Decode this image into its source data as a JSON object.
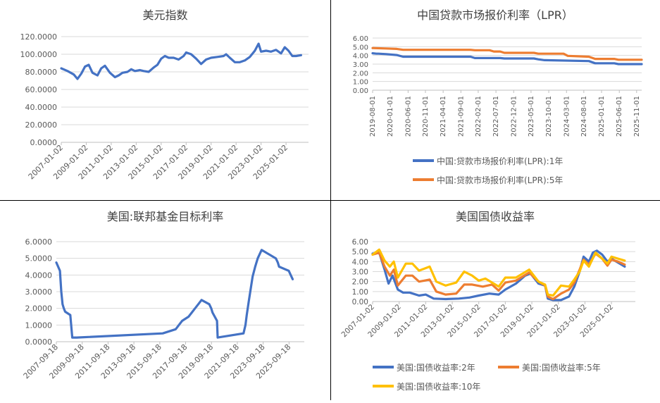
{
  "colors": {
    "blue": "#4472C4",
    "orange": "#ED7D31",
    "yellow": "#FFC000",
    "grid": "#d9d9d9",
    "axis": "#bfbfbf",
    "text": "#595959",
    "title": "#404040"
  },
  "chart_data": [
    {
      "id": "dxy",
      "type": "line",
      "title": "美元指数",
      "ylim": [
        0,
        120
      ],
      "yticks": [
        0,
        20,
        40,
        60,
        80,
        100,
        120
      ],
      "ytick_labels": [
        "0.0000",
        "20.0000",
        "40.0000",
        "60.0000",
        "80.0000",
        "100.0000",
        "120.0000"
      ],
      "xlim": [
        2007.0,
        2026.8
      ],
      "xticks": [
        2007,
        2009,
        2011,
        2013,
        2015,
        2017,
        2019,
        2021,
        2023,
        2025
      ],
      "xtick_labels": [
        "2007-01-02",
        "2009-01-02",
        "2011-01-02",
        "2013-01-02",
        "2015-01-02",
        "2017-01-02",
        "2019-01-02",
        "2021-01-02",
        "2023-01-02",
        "2025-01-02"
      ],
      "grid": "horizontal",
      "legend": "none",
      "series": [
        {
          "color": "blue",
          "x": [
            2007.0,
            2007.5,
            2008.0,
            2008.3,
            2008.6,
            2008.9,
            2009.2,
            2009.5,
            2009.9,
            2010.2,
            2010.5,
            2010.9,
            2011.3,
            2011.6,
            2011.9,
            2012.3,
            2012.6,
            2012.9,
            2013.3,
            2013.6,
            2014.0,
            2014.4,
            2014.7,
            2015.0,
            2015.3,
            2015.6,
            2016.0,
            2016.4,
            2016.8,
            2017.0,
            2017.4,
            2017.8,
            2018.2,
            2018.6,
            2019.0,
            2019.5,
            2020.0,
            2020.2,
            2020.5,
            2020.9,
            2021.3,
            2021.7,
            2022.1,
            2022.5,
            2022.8,
            2023.0,
            2023.4,
            2023.8,
            2024.2,
            2024.6,
            2024.9,
            2025.2,
            2025.5,
            2025.8,
            2026.2
          ],
          "y": [
            84,
            81,
            77,
            72,
            78,
            86,
            88,
            79,
            76,
            84,
            87,
            79,
            74,
            76,
            79,
            80,
            83,
            81,
            82,
            81,
            80,
            85,
            88,
            95,
            98,
            96,
            96,
            94,
            98,
            102,
            100,
            95,
            89,
            94,
            96,
            97,
            98,
            100,
            96,
            91,
            91,
            93,
            97,
            104,
            112,
            103,
            104,
            103,
            105,
            101,
            108,
            104,
            98,
            98,
            99
          ]
        }
      ]
    },
    {
      "id": "lpr",
      "type": "line",
      "title": "中国贷款市场报价利率（LPR）",
      "ylim": [
        0,
        6
      ],
      "yticks": [
        0,
        1,
        2,
        3,
        4,
        5,
        6
      ],
      "ytick_labels": [
        "0.00",
        "1.00",
        "2.00",
        "3.00",
        "4.00",
        "5.00",
        "6.00"
      ],
      "xlim": [
        2019.58,
        2025.95
      ],
      "xticks": [
        2019.58,
        2020.0,
        2020.42,
        2020.83,
        2021.25,
        2021.67,
        2022.08,
        2022.5,
        2022.92,
        2023.33,
        2023.75,
        2024.17,
        2024.58,
        2025.0,
        2025.42,
        2025.83
      ],
      "xtick_labels": [
        "2019-08-01",
        "2020-01-01",
        "2020-06-01",
        "2020-11-01",
        "2021-04-01",
        "2021-09-01",
        "2022-02-01",
        "2022-07-01",
        "2022-12-01",
        "2023-05-01",
        "2023-10-01",
        "2024-03-01",
        "2024-08-01",
        "2025-01-01",
        "2025-06-01",
        "2025-11-01"
      ],
      "grid": "horizontal",
      "legend": "bottom",
      "series": [
        {
          "name": "中国:贷款市场报价利率(LPR):1年",
          "color": "blue",
          "x": [
            2019.58,
            2019.67,
            2019.72,
            2019.9,
            2020.15,
            2020.3,
            2021.9,
            2022.0,
            2022.6,
            2022.7,
            2023.4,
            2023.5,
            2023.65,
            2024.7,
            2024.85,
            2025.3,
            2025.4,
            2025.95
          ],
          "y": [
            4.25,
            4.2,
            4.2,
            4.15,
            4.05,
            3.85,
            3.85,
            3.7,
            3.7,
            3.65,
            3.65,
            3.55,
            3.45,
            3.35,
            3.1,
            3.1,
            3.0,
            3.0
          ]
        },
        {
          "name": "中国:贷款市场报价利率(LPR):5年",
          "color": "orange",
          "x": [
            2019.58,
            2019.9,
            2020.15,
            2020.3,
            2021.9,
            2022.0,
            2022.35,
            2022.45,
            2022.6,
            2022.7,
            2023.4,
            2023.5,
            2023.65,
            2024.1,
            2024.2,
            2024.7,
            2024.85,
            2025.3,
            2025.4,
            2025.95
          ],
          "y": [
            4.85,
            4.8,
            4.75,
            4.65,
            4.65,
            4.6,
            4.6,
            4.45,
            4.45,
            4.3,
            4.3,
            4.2,
            4.2,
            4.2,
            3.95,
            3.85,
            3.6,
            3.6,
            3.5,
            3.5
          ]
        }
      ]
    },
    {
      "id": "ffr",
      "type": "line",
      "title": "美国:联邦基金目标利率",
      "ylim": [
        0,
        6
      ],
      "yticks": [
        0,
        1,
        2,
        3,
        4,
        5,
        6
      ],
      "ytick_labels": [
        "0.0000",
        "1.0000",
        "2.0000",
        "3.0000",
        "4.0000",
        "5.0000",
        "6.0000"
      ],
      "xlim": [
        2007.72,
        2026.9
      ],
      "xticks": [
        2007.72,
        2009.72,
        2011.72,
        2013.72,
        2015.72,
        2017.72,
        2019.72,
        2021.72,
        2023.72,
        2025.72
      ],
      "xtick_labels": [
        "2007-09-18",
        "2009-09-18",
        "2011-09-18",
        "2013-09-18",
        "2015-09-18",
        "2017-09-18",
        "2019-09-18",
        "2021-09-18",
        "2023-09-18",
        "2025-09-18"
      ],
      "grid": "horizontal",
      "legend": "none",
      "series": [
        {
          "color": "blue",
          "x": [
            2007.72,
            2008.0,
            2008.1,
            2008.2,
            2008.3,
            2008.4,
            2008.8,
            2008.95,
            2009.3,
            2015.95,
            2016.95,
            2017.2,
            2017.45,
            2017.95,
            2018.2,
            2018.45,
            2018.7,
            2018.95,
            2019.55,
            2019.7,
            2019.8,
            2020.15,
            2020.2,
            2022.2,
            2022.35,
            2022.45,
            2022.6,
            2022.9,
            2023.1,
            2023.3,
            2023.6,
            2024.7,
            2024.85,
            2024.95,
            2025.7,
            2025.85,
            2026.0
          ],
          "y": [
            4.75,
            4.25,
            3.0,
            2.25,
            2.0,
            1.8,
            1.6,
            0.25,
            0.25,
            0.5,
            0.75,
            1.0,
            1.25,
            1.5,
            1.75,
            2.0,
            2.25,
            2.5,
            2.25,
            2.0,
            1.75,
            1.25,
            0.25,
            0.5,
            1.0,
            1.6,
            2.4,
            3.9,
            4.5,
            5.0,
            5.5,
            5.0,
            4.75,
            4.5,
            4.25,
            4.0,
            3.75
          ]
        }
      ]
    },
    {
      "id": "ust",
      "type": "line",
      "title": "美国国债收益率",
      "ylim": [
        0,
        6
      ],
      "yticks": [
        0,
        1,
        2,
        3,
        4,
        5,
        6
      ],
      "ytick_labels": [
        "0.00",
        "1.00",
        "2.00",
        "3.00",
        "4.00",
        "5.00",
        "6.00"
      ],
      "xlim": [
        2007.0,
        2026.8
      ],
      "xticks": [
        2007,
        2009,
        2011,
        2013,
        2015,
        2017,
        2019,
        2021,
        2023,
        2025
      ],
      "xtick_labels": [
        "2007-01-02",
        "2009-01-02",
        "2011-01-02",
        "2013-01-02",
        "2015-01-02",
        "2017-01-02",
        "2019-01-02",
        "2021-01-02",
        "2023-01-02",
        "2025-01-02"
      ],
      "grid": "horizontal",
      "legend": "bottom",
      "series": [
        {
          "name": "美国:国债收益率:2年",
          "color": "blue",
          "x": [
            2007.0,
            2007.5,
            2007.9,
            2008.2,
            2008.5,
            2008.9,
            2009.3,
            2009.8,
            2010.5,
            2011.0,
            2011.6,
            2012.5,
            2013.5,
            2014.3,
            2015.0,
            2015.8,
            2016.5,
            2017.0,
            2017.8,
            2018.5,
            2018.9,
            2019.5,
            2020.0,
            2020.2,
            2020.6,
            2021.2,
            2021.8,
            2022.2,
            2022.6,
            2022.9,
            2023.3,
            2023.6,
            2023.9,
            2024.3,
            2024.7,
            2025.0,
            2025.5,
            2026.0
          ],
          "y": [
            4.8,
            4.9,
            3.2,
            1.8,
            2.6,
            1.2,
            0.9,
            0.9,
            0.6,
            0.7,
            0.3,
            0.25,
            0.3,
            0.4,
            0.6,
            0.8,
            0.7,
            1.2,
            1.8,
            2.6,
            2.8,
            1.8,
            1.6,
            0.3,
            0.15,
            0.15,
            0.5,
            1.5,
            3.0,
            4.5,
            4.0,
            4.9,
            5.1,
            4.7,
            4.0,
            4.3,
            3.9,
            3.5
          ]
        },
        {
          "name": "美国:国债收益率:5年",
          "color": "orange",
          "x": [
            2007.0,
            2007.5,
            2007.9,
            2008.3,
            2008.6,
            2008.9,
            2009.5,
            2010.0,
            2010.5,
            2010.9,
            2011.3,
            2011.8,
            2012.5,
            2013.3,
            2013.9,
            2014.5,
            2015.3,
            2016.0,
            2016.5,
            2017.0,
            2017.8,
            2018.8,
            2019.5,
            2020.0,
            2020.2,
            2020.6,
            2021.2,
            2021.8,
            2022.2,
            2022.6,
            2022.9,
            2023.3,
            2023.8,
            2024.3,
            2024.7,
            2025.0,
            2025.5,
            2026.0
          ],
          "y": [
            4.7,
            4.9,
            3.5,
            2.6,
            3.2,
            1.6,
            2.6,
            2.6,
            2.0,
            2.1,
            2.2,
            1.0,
            0.7,
            0.8,
            1.7,
            1.7,
            1.5,
            1.7,
            1.1,
            1.9,
            2.1,
            2.9,
            2.0,
            1.6,
            0.5,
            0.25,
            0.8,
            1.2,
            1.9,
            3.2,
            4.2,
            3.7,
            4.8,
            4.3,
            3.6,
            4.2,
            4.0,
            3.7
          ]
        },
        {
          "name": "美国:国债收益率:10年",
          "color": "yellow",
          "x": [
            2007.0,
            2007.5,
            2007.9,
            2008.3,
            2008.6,
            2008.9,
            2009.5,
            2010.0,
            2010.5,
            2010.9,
            2011.3,
            2011.8,
            2012.5,
            2013.3,
            2013.9,
            2014.5,
            2015.0,
            2015.5,
            2016.5,
            2017.0,
            2017.8,
            2018.8,
            2019.5,
            2020.0,
            2020.2,
            2020.6,
            2021.2,
            2021.8,
            2022.2,
            2022.6,
            2022.9,
            2023.3,
            2023.8,
            2024.3,
            2024.7,
            2025.0,
            2025.5,
            2026.0
          ],
          "y": [
            4.7,
            5.2,
            4.1,
            3.5,
            4.0,
            2.4,
            3.8,
            3.8,
            3.1,
            3.3,
            3.5,
            2.0,
            1.6,
            1.9,
            3.0,
            2.6,
            2.1,
            2.3,
            1.5,
            2.4,
            2.4,
            3.2,
            2.0,
            1.7,
            0.7,
            0.6,
            1.6,
            1.5,
            2.2,
            3.0,
            4.1,
            3.5,
            4.9,
            4.3,
            3.8,
            4.5,
            4.3,
            4.1
          ]
        }
      ]
    }
  ]
}
